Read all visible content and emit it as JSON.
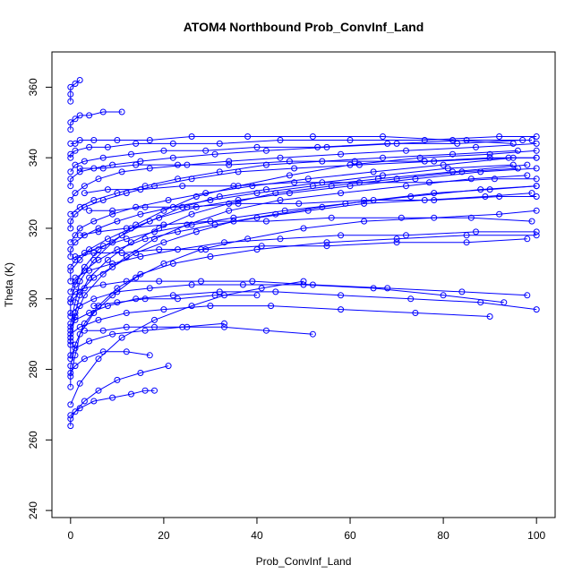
{
  "chart_data": {
    "type": "line",
    "title": "ATOM4 Northbound Prob_ConvInf_Land",
    "xlabel": "Prob_ConvInf_Land",
    "ylabel": "Theta (K)",
    "xlim": [
      -4,
      104
    ],
    "ylim": [
      238,
      370
    ],
    "xticks": [
      0,
      20,
      40,
      60,
      80,
      100
    ],
    "yticks": [
      240,
      260,
      280,
      300,
      320,
      340,
      360
    ],
    "grid": false,
    "legend": "none",
    "marker": "open-circle",
    "color": "#0000ff",
    "series": [
      {
        "x": [
          0,
          2,
          6,
          11,
          18,
          26,
          33,
          41,
          50
        ],
        "y": [
          270,
          276,
          283,
          289,
          294,
          298,
          301,
          303,
          305
        ]
      },
      {
        "x": [
          0,
          0,
          1,
          3,
          6,
          10,
          15,
          22,
          30,
          40,
          55,
          70,
          85,
          100
        ],
        "y": [
          275,
          281,
          287,
          293,
          298,
          303,
          307,
          310,
          312,
          314,
          316,
          317,
          318,
          318
        ]
      },
      {
        "x": [
          0,
          1,
          2,
          5,
          9,
          14,
          20,
          28,
          38,
          50,
          63,
          78,
          92,
          100
        ],
        "y": [
          278,
          284,
          290,
          296,
          301,
          306,
          310,
          314,
          317,
          320,
          322,
          323,
          324,
          325
        ]
      },
      {
        "x": [
          0,
          0,
          1,
          3,
          7,
          12,
          18,
          25,
          34,
          45,
          58,
          72,
          86,
          98
        ],
        "y": [
          283,
          289,
          295,
          301,
          307,
          312,
          317,
          321,
          325,
          328,
          330,
          332,
          334,
          335
        ]
      },
      {
        "x": [
          0,
          0,
          1,
          2,
          5,
          9,
          14,
          20,
          27,
          36,
          47,
          60,
          75,
          90,
          100
        ],
        "y": [
          287,
          293,
          299,
          305,
          311,
          316,
          321,
          325,
          329,
          332,
          335,
          338,
          340,
          341,
          342
        ]
      },
      {
        "x": [
          0,
          1,
          2,
          4,
          8,
          13,
          19,
          26,
          34,
          44,
          56,
          70,
          84,
          96
        ],
        "y": [
          291,
          296,
          301,
          306,
          311,
          316,
          320,
          324,
          327,
          330,
          332,
          334,
          336,
          337
        ]
      },
      {
        "x": [
          0,
          0,
          1,
          3,
          6,
          11,
          17,
          24,
          32,
          42,
          54,
          67,
          81,
          95
        ],
        "y": [
          295,
          299,
          304,
          309,
          314,
          318,
          322,
          326,
          329,
          331,
          333,
          335,
          337,
          338
        ]
      },
      {
        "x": [
          0,
          2,
          5,
          9,
          14,
          20,
          27,
          35,
          44,
          54,
          65,
          78,
          90,
          100
        ],
        "y": [
          299,
          302,
          306,
          309,
          313,
          316,
          319,
          322,
          324,
          326,
          328,
          330,
          331,
          332
        ]
      },
      {
        "x": [
          0,
          1,
          3,
          6,
          10,
          16,
          23,
          31,
          40,
          51,
          63,
          76,
          89,
          99
        ],
        "y": [
          302,
          305,
          308,
          311,
          314,
          317,
          319,
          321,
          323,
          325,
          327,
          328,
          329,
          330
        ]
      },
      {
        "x": [
          0,
          0,
          2,
          4,
          8,
          13,
          19,
          27,
          36,
          47,
          60,
          74,
          88,
          100
        ],
        "y": [
          305,
          308,
          311,
          314,
          317,
          320,
          323,
          326,
          328,
          330,
          332,
          334,
          336,
          337
        ]
      },
      {
        "x": [
          0,
          1,
          3,
          7,
          12,
          18,
          26,
          35,
          46,
          59,
          73,
          88,
          100
        ],
        "y": [
          309,
          311,
          313,
          315,
          317,
          319,
          321,
          323,
          325,
          327,
          329,
          331,
          332
        ]
      },
      {
        "x": [
          0,
          0,
          1,
          3,
          6,
          10,
          15,
          22,
          30,
          40,
          52,
          66,
          82,
          98
        ],
        "y": [
          312,
          314,
          316,
          318,
          320,
          322,
          324,
          326,
          328,
          330,
          332,
          334,
          336,
          338
        ]
      },
      {
        "x": [
          0,
          1,
          2,
          5,
          9,
          14,
          21,
          29,
          39,
          51,
          65,
          80,
          95
        ],
        "y": [
          316,
          318,
          320,
          322,
          324,
          326,
          328,
          330,
          332,
          334,
          336,
          338,
          340
        ]
      },
      {
        "x": [
          0,
          0,
          1,
          3,
          7,
          12,
          18,
          26,
          36,
          48,
          62,
          78,
          94,
          100
        ],
        "y": [
          320,
          322,
          324,
          326,
          328,
          330,
          332,
          334,
          336,
          337,
          338,
          339,
          340,
          340
        ]
      },
      {
        "x": [
          0,
          2,
          5,
          10,
          16,
          23,
          32,
          42,
          54,
          67,
          82,
          96
        ],
        "y": [
          324,
          326,
          328,
          330,
          332,
          334,
          336,
          338,
          339,
          340,
          341,
          342
        ]
      },
      {
        "x": [
          0,
          1,
          3,
          6,
          11,
          17,
          25,
          34,
          45,
          58,
          72,
          87,
          100
        ],
        "y": [
          328,
          330,
          332,
          334,
          336,
          337,
          338,
          339,
          340,
          341,
          342,
          343,
          344
        ]
      },
      {
        "x": [
          0,
          0,
          2,
          5,
          9,
          15,
          22,
          31,
          42,
          55,
          70,
          85,
          99
        ],
        "y": [
          332,
          334,
          336,
          337,
          338,
          339,
          340,
          341,
          342,
          343,
          344,
          345,
          345
        ]
      },
      {
        "x": [
          0,
          1,
          3,
          7,
          13,
          20,
          29,
          40,
          53,
          68,
          83,
          97
        ],
        "y": [
          336,
          338,
          339,
          340,
          341,
          342,
          342,
          343,
          343,
          344,
          344,
          345
        ]
      },
      {
        "x": [
          0,
          0,
          1,
          4,
          8,
          14,
          22,
          32,
          45,
          60,
          76,
          92,
          100
        ],
        "y": [
          340,
          341,
          342,
          343,
          343,
          344,
          344,
          344,
          345,
          345,
          345,
          346,
          346
        ]
      },
      {
        "x": [
          0,
          1,
          2,
          5,
          10,
          17,
          26,
          38,
          52,
          67,
          82,
          95
        ],
        "y": [
          344,
          344,
          345,
          345,
          345,
          345,
          346,
          346,
          346,
          346,
          345,
          344
        ]
      },
      {
        "x": [
          0,
          0,
          1,
          2,
          4,
          7,
          11
        ],
        "y": [
          348,
          350,
          351,
          352,
          352,
          353,
          353
        ]
      },
      {
        "x": [
          0,
          0,
          0,
          1,
          2
        ],
        "y": [
          356,
          358,
          360,
          361,
          362
        ]
      },
      {
        "x": [
          0,
          1,
          3,
          7,
          12,
          19,
          28,
          39,
          52,
          68,
          84,
          98
        ],
        "y": [
          300,
          302,
          303,
          304,
          305,
          305,
          305,
          305,
          304,
          303,
          302,
          301
        ]
      },
      {
        "x": [
          0,
          2,
          5,
          10,
          17,
          26,
          37,
          50,
          65,
          80,
          93
        ],
        "y": [
          296,
          298,
          300,
          302,
          303,
          304,
          304,
          304,
          303,
          301,
          299
        ]
      },
      {
        "x": [
          0,
          1,
          4,
          8,
          14,
          22,
          32,
          44,
          58,
          73,
          88,
          100
        ],
        "y": [
          292,
          294,
          296,
          298,
          300,
          301,
          302,
          302,
          301,
          300,
          299,
          297
        ]
      },
      {
        "x": [
          0,
          0,
          2,
          6,
          12,
          20,
          30,
          43,
          58,
          74,
          90
        ],
        "y": [
          288,
          290,
          292,
          294,
          296,
          297,
          298,
          298,
          297,
          296,
          295
        ]
      },
      {
        "x": [
          0,
          1,
          3,
          7,
          12,
          17
        ],
        "y": [
          279,
          281,
          283,
          285,
          285,
          284
        ]
      },
      {
        "x": [
          0,
          2,
          5,
          9,
          13,
          16,
          18
        ],
        "y": [
          267,
          269,
          271,
          272,
          273,
          274,
          274
        ]
      },
      {
        "x": [
          0,
          1,
          4,
          9,
          16,
          24,
          33
        ],
        "y": [
          284,
          286,
          288,
          290,
          291,
          292,
          293
        ]
      },
      {
        "x": [
          0,
          0,
          1,
          3,
          6,
          10,
          15,
          21
        ],
        "y": [
          264,
          266,
          268,
          271,
          274,
          277,
          279,
          281
        ]
      },
      {
        "x": [
          1,
          4,
          9,
          15,
          23,
          33,
          45,
          58,
          72,
          87,
          100
        ],
        "y": [
          306,
          308,
          310,
          312,
          314,
          316,
          317,
          318,
          318,
          319,
          319
        ]
      },
      {
        "x": [
          2,
          6,
          12,
          20,
          30,
          42,
          56,
          71,
          86,
          99
        ],
        "y": [
          318,
          319,
          320,
          321,
          322,
          322,
          323,
          323,
          323,
          322
        ]
      },
      {
        "x": [
          3,
          8,
          15,
          24,
          35,
          48,
          62,
          77,
          91,
          100
        ],
        "y": [
          330,
          331,
          331,
          332,
          332,
          333,
          333,
          333,
          334,
          334
        ]
      },
      {
        "x": [
          1,
          5,
          11,
          19,
          29,
          41,
          55,
          70,
          85,
          98
        ],
        "y": [
          312,
          313,
          313,
          314,
          314,
          315,
          315,
          316,
          316,
          317
        ]
      },
      {
        "x": [
          4,
          9,
          16,
          25,
          36,
          49,
          63,
          78,
          92,
          100
        ],
        "y": [
          325,
          325,
          326,
          326,
          327,
          327,
          328,
          328,
          329,
          329
        ]
      },
      {
        "x": [
          2,
          7,
          14,
          23,
          34,
          47,
          61,
          76,
          90,
          100
        ],
        "y": [
          337,
          337,
          338,
          338,
          338,
          339,
          339,
          339,
          340,
          340
        ]
      },
      {
        "x": [
          5,
          10,
          16,
          23,
          31,
          40
        ],
        "y": [
          298,
          299,
          300,
          300,
          301,
          301
        ]
      },
      {
        "x": [
          3,
          7,
          12,
          18,
          25,
          33,
          42,
          52
        ],
        "y": [
          291,
          291,
          292,
          292,
          292,
          292,
          291,
          290
        ]
      }
    ]
  }
}
